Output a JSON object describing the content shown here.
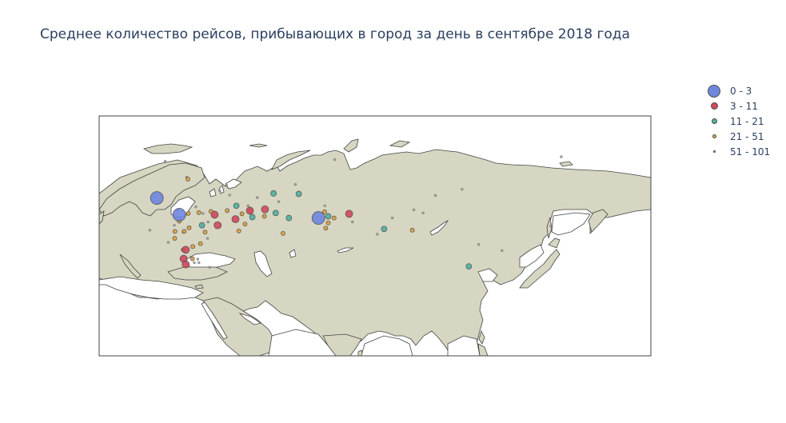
{
  "title": "Среднее количество рейсов, прибывающих в город за день в сентябре 2018 года",
  "colors": {
    "land": "#d6d6c2",
    "coast": "#444444",
    "ocean": "#ffffff",
    "frame": "#444444"
  },
  "legend": [
    {
      "label": "0 - 3",
      "color": "#6f86dd",
      "size": 16
    },
    {
      "label": "3 - 11",
      "color": "#d2485e",
      "size": 9
    },
    {
      "label": "11 - 21",
      "color": "#4fb0a0",
      "size": 7
    },
    {
      "label": "21 - 51",
      "color": "#e0a23c",
      "size": 5
    },
    {
      "label": "51 - 101",
      "color": "#9a9a9a",
      "size": 3
    }
  ],
  "chart_data": {
    "type": "scatter-geo",
    "title": "Среднее количество рейсов, прибывающих в город за день в сентябре 2018 года",
    "legend_position": "top-right",
    "series": [
      {
        "name": "0 - 3",
        "points": [
          [
            37.6,
            55.8
          ],
          [
            30.3,
            59.9
          ],
          [
            82.9,
            55.0
          ]
        ]
      },
      {
        "name": "3 - 11",
        "points": [
          [
            39.7,
            47.2
          ],
          [
            39.0,
            45.0
          ],
          [
            60.6,
            56.8
          ],
          [
            49.1,
            55.8
          ],
          [
            65.5,
            57.1
          ],
          [
            55.9,
            54.7
          ],
          [
            92.9,
            56.0
          ],
          [
            50.1,
            53.2
          ],
          [
            39.7,
            43.6
          ]
        ]
      },
      {
        "name": "11 - 21",
        "points": [
          [
            131.9,
            43.1
          ],
          [
            104.3,
            52.3
          ],
          [
            73.3,
            55.0
          ],
          [
            76.5,
            60.9
          ],
          [
            86.1,
            55.4
          ],
          [
            61.4,
            55.2
          ],
          [
            56.2,
            58.0
          ],
          [
            68.3,
            61.0
          ],
          [
            69.0,
            56.2
          ],
          [
            45.0,
            53.2
          ]
        ]
      },
      {
        "name": "21 - 51",
        "points": [
          [
            36.2,
            51.7
          ],
          [
            40.5,
            56.1
          ],
          [
            44.0,
            56.3
          ],
          [
            42.0,
            48.0
          ],
          [
            41.9,
            45.0
          ],
          [
            38.9,
            47.2
          ],
          [
            39.2,
            51.7
          ],
          [
            37.6,
            54.2
          ],
          [
            113.5,
            52.0
          ],
          [
            86.1,
            53.8
          ],
          [
            85.3,
            52.5
          ],
          [
            71.4,
            51.2
          ],
          [
            84.9,
            56.5
          ],
          [
            65.3,
            55.4
          ],
          [
            57.0,
            51.8
          ],
          [
            53.2,
            56.8
          ],
          [
            60.7,
            56.9
          ],
          [
            46.0,
            51.5
          ],
          [
            47.9,
            56.6
          ],
          [
            59.0,
            53.5
          ],
          [
            58.0,
            56.0
          ],
          [
            36.1,
            50.0
          ],
          [
            44.5,
            48.7
          ],
          [
            40.8,
            52.6
          ],
          [
            88.0,
            55.0
          ],
          [
            40.4,
            64.5
          ]
        ]
      },
      {
        "name": "51 - 101",
        "points": [
          [
            135.1,
            48.5
          ],
          [
            142.7,
            47.0
          ],
          [
            158.6,
            53.0
          ],
          [
            129.7,
            62.0
          ],
          [
            117.0,
            56.2
          ],
          [
            102.1,
            51.0
          ],
          [
            94.0,
            54.0
          ],
          [
            70.0,
            59.0
          ],
          [
            75.4,
            63.2
          ],
          [
            63.0,
            60.0
          ],
          [
            54.0,
            60.6
          ],
          [
            50.8,
            61.7
          ],
          [
            47.0,
            54.0
          ],
          [
            43.0,
            57.7
          ],
          [
            33.0,
            68.9
          ],
          [
            40.0,
            65.0
          ],
          [
            28.0,
            52.0
          ],
          [
            34.0,
            49.0
          ],
          [
            45.3,
            56.1
          ],
          [
            46.8,
            50.0
          ],
          [
            44.0,
            44.0
          ],
          [
            42.5,
            44.0
          ],
          [
            47.5,
            42.9
          ],
          [
            43.6,
            44.9
          ],
          [
            37.0,
            57.0
          ],
          [
            36.0,
            53.2
          ],
          [
            41.0,
            52.8
          ],
          [
            60.0,
            58.0
          ],
          [
            107.0,
            55.0
          ],
          [
            114.0,
            57.0
          ],
          [
            88.2,
            69.3
          ],
          [
            162.0,
            70.0
          ],
          [
            121.0,
            60.5
          ],
          [
            85.0,
            58.0
          ],
          [
            53.0,
            63.0
          ],
          [
            38.8,
            51.5
          ]
        ]
      }
    ]
  }
}
